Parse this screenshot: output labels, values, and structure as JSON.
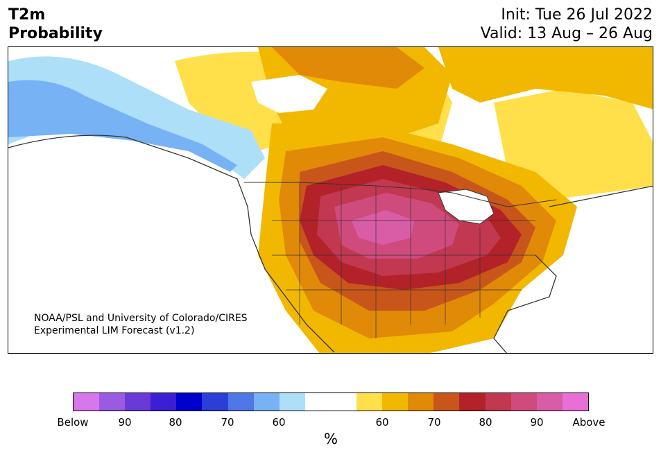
{
  "header": {
    "title_line1": "T2m",
    "title_line2": "Probability",
    "init": "Init: Tue 26 Jul 2022",
    "valid": "Valid: 13 Aug – 26 Aug"
  },
  "map": {
    "credit_line1": "NOAA/PSL and University of Colorado/CIRES",
    "credit_line2": "Experimental LIM Forecast (v1.2)"
  },
  "colorbar": {
    "colors": [
      "#d677ec",
      "#9b5ae2",
      "#6a3ad8",
      "#3a1fd4",
      "#0000cc",
      "#2a3fd9",
      "#4f77e8",
      "#77b2f5",
      "#addff9",
      "#ffffff",
      "#ffffff",
      "#ffe04a",
      "#f2b800",
      "#e08a08",
      "#c8561a",
      "#b22228",
      "#c23851",
      "#cf4b7d",
      "#d95ca7",
      "#e86ed8"
    ],
    "tick_labels": [
      "Below",
      "90",
      "80",
      "70",
      "60",
      "60",
      "70",
      "80",
      "90",
      "Above"
    ],
    "unit": "%"
  }
}
